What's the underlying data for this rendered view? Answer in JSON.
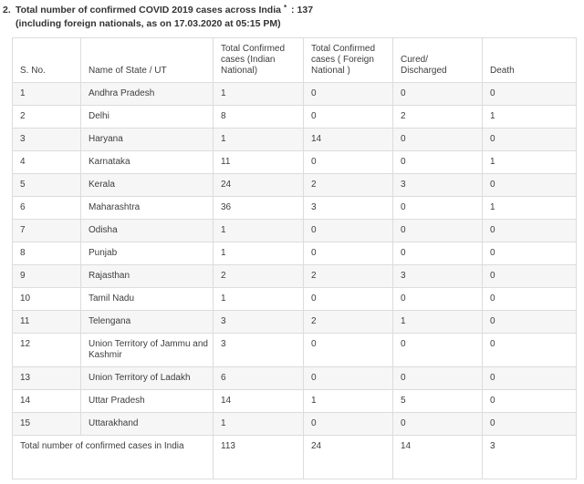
{
  "title": {
    "list_number": "2.",
    "text": "Total number of confirmed COVID 2019 cases across India",
    "footnote_marker": "*",
    "colon": ":",
    "count": "137",
    "subtitle": "(including foreign nationals, as on 17.03.2020 at 05:15 PM)"
  },
  "table": {
    "headers": {
      "sno": "S. No.",
      "state": "Name of State / UT",
      "indian": "Total Confirmed cases (Indian National)",
      "foreign": "Total Confirmed cases ( Foreign National )",
      "cured": "Cured/\nDischarged",
      "death": "Death"
    },
    "rows": [
      {
        "sno": "1",
        "state": "Andhra Pradesh",
        "indian": "1",
        "foreign": "0",
        "cured": "0",
        "death": "0"
      },
      {
        "sno": "2",
        "state": "Delhi",
        "indian": "8",
        "foreign": "0",
        "cured": "2",
        "death": "1"
      },
      {
        "sno": "3",
        "state": "Haryana",
        "indian": "1",
        "foreign": "14",
        "cured": "0",
        "death": "0"
      },
      {
        "sno": "4",
        "state": "Karnataka",
        "indian": "11",
        "foreign": "0",
        "cured": "0",
        "death": "1"
      },
      {
        "sno": "5",
        "state": "Kerala",
        "indian": "24",
        "foreign": "2",
        "cured": "3",
        "death": "0"
      },
      {
        "sno": "6",
        "state": "Maharashtra",
        "indian": "36",
        "foreign": "3",
        "cured": "0",
        "death": "1"
      },
      {
        "sno": "7",
        "state": "Odisha",
        "indian": "1",
        "foreign": "0",
        "cured": "0",
        "death": "0"
      },
      {
        "sno": "8",
        "state": "Punjab",
        "indian": "1",
        "foreign": "0",
        "cured": "0",
        "death": "0"
      },
      {
        "sno": "9",
        "state": "Rajasthan",
        "indian": "2",
        "foreign": "2",
        "cured": "3",
        "death": "0"
      },
      {
        "sno": "10",
        "state": "Tamil Nadu",
        "indian": "1",
        "foreign": "0",
        "cured": "0",
        "death": "0"
      },
      {
        "sno": "11",
        "state": "Telengana",
        "indian": "3",
        "foreign": "2",
        "cured": "1",
        "death": "0"
      },
      {
        "sno": "12",
        "state": "Union Territory of Jammu and Kashmir",
        "indian": "3",
        "foreign": "0",
        "cured": "0",
        "death": "0"
      },
      {
        "sno": "13",
        "state": "Union Territory of Ladakh",
        "indian": "6",
        "foreign": "0",
        "cured": "0",
        "death": "0"
      },
      {
        "sno": "14",
        "state": "Uttar Pradesh",
        "indian": "14",
        "foreign": "1",
        "cured": "5",
        "death": "0"
      },
      {
        "sno": "15",
        "state": "Uttarakhand",
        "indian": "1",
        "foreign": "0",
        "cured": "0",
        "death": "0"
      }
    ],
    "total_row": {
      "label": "Total number of confirmed cases in India",
      "indian": "113",
      "foreign": "24",
      "cured": "14",
      "death": "3"
    }
  },
  "colors": {
    "stripe": "#f6f6f6",
    "border": "#dcdcdc",
    "text": "#3d3d3d",
    "background": "#ffffff"
  }
}
